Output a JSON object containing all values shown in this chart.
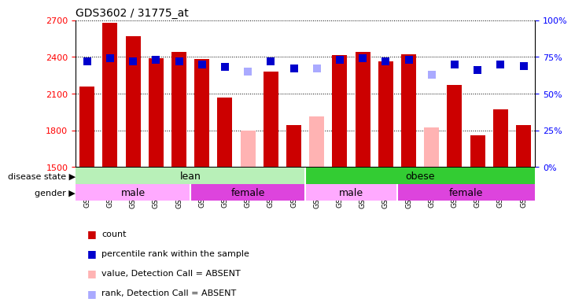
{
  "title": "GDS3602 / 31775_at",
  "samples": [
    "GSM47286",
    "GSM47299",
    "GSM47300",
    "GSM47301",
    "GSM47303",
    "GSM47229",
    "GSM47230",
    "GSM47231",
    "GSM47232",
    "GSM47233",
    "GSM47333",
    "GSM47334",
    "GSM47335",
    "GSM47336",
    "GSM47337",
    "GSM47324",
    "GSM47325",
    "GSM47326",
    "GSM47327",
    "GSM47328"
  ],
  "counts": [
    2160,
    2680,
    2570,
    2390,
    2440,
    2385,
    2065,
    1800,
    2280,
    1840,
    1910,
    2415,
    2440,
    2365,
    2420,
    1820,
    2170,
    1760,
    1970,
    1840
  ],
  "absent": [
    false,
    false,
    false,
    false,
    false,
    false,
    false,
    true,
    false,
    false,
    true,
    false,
    false,
    false,
    false,
    true,
    false,
    false,
    false,
    false
  ],
  "percentile_ranks": [
    72,
    74,
    72,
    73,
    72,
    70,
    68,
    65,
    72,
    67,
    67,
    73,
    74,
    72,
    73,
    63,
    70,
    66,
    70,
    69
  ],
  "absent_rank": [
    false,
    false,
    false,
    false,
    false,
    false,
    false,
    true,
    false,
    false,
    true,
    false,
    false,
    false,
    false,
    true,
    false,
    false,
    false,
    false
  ],
  "ylim_left": [
    1500,
    2700
  ],
  "ylim_right": [
    0,
    100
  ],
  "yticks_left": [
    1500,
    1800,
    2100,
    2400,
    2700
  ],
  "yticks_right": [
    0,
    25,
    50,
    75,
    100
  ],
  "bar_color_present": "#cc0000",
  "bar_color_absent": "#ffb3b3",
  "dot_color_present": "#0000cc",
  "dot_color_absent": "#aaaaff",
  "dot_size": 55,
  "disease_state": [
    {
      "label": "lean",
      "start": 0,
      "end": 10,
      "color": "#b8f0b8"
    },
    {
      "label": "obese",
      "start": 10,
      "end": 20,
      "color": "#33cc33"
    }
  ],
  "gender": [
    {
      "label": "male",
      "start": 0,
      "end": 5,
      "color": "#ffaaff"
    },
    {
      "label": "female",
      "start": 5,
      "end": 10,
      "color": "#dd44dd"
    },
    {
      "label": "male",
      "start": 10,
      "end": 14,
      "color": "#ffaaff"
    },
    {
      "label": "female",
      "start": 14,
      "end": 20,
      "color": "#dd44dd"
    }
  ],
  "legend_items": [
    {
      "label": "count",
      "color": "#cc0000"
    },
    {
      "label": "percentile rank within the sample",
      "color": "#0000cc"
    },
    {
      "label": "value, Detection Call = ABSENT",
      "color": "#ffb3b3"
    },
    {
      "label": "rank, Detection Call = ABSENT",
      "color": "#aaaaff"
    }
  ],
  "disease_label": "disease state",
  "gender_label": "gender",
  "bg_color": "#d8d8d8"
}
